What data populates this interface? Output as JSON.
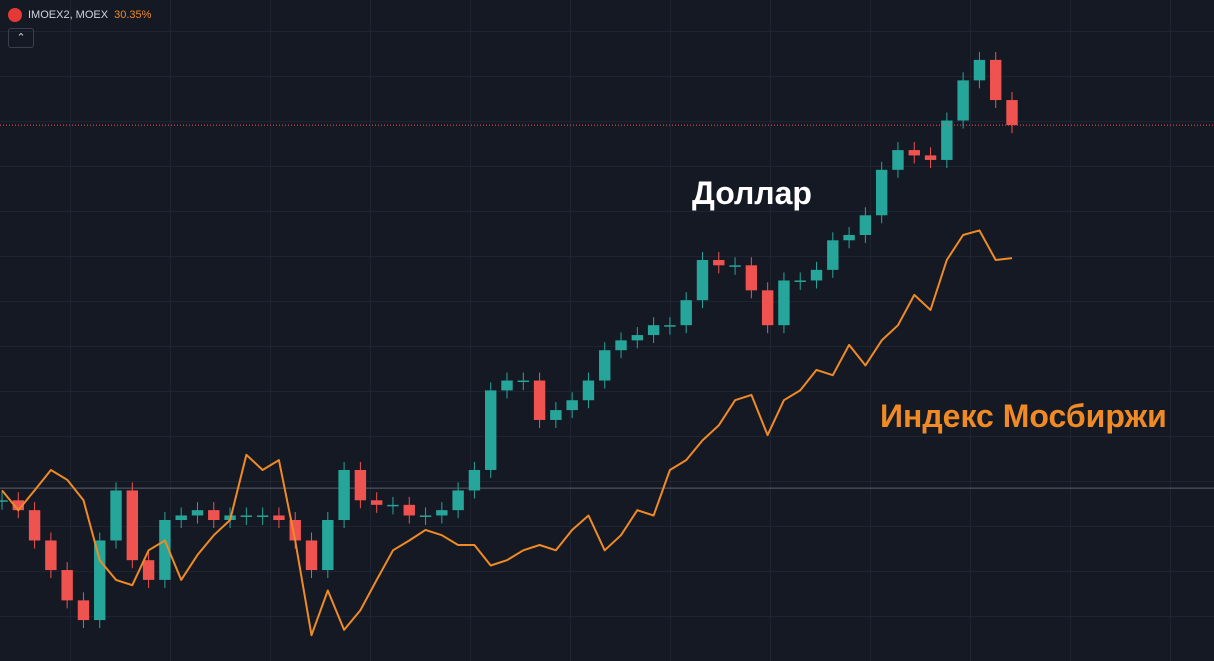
{
  "chart_data": {
    "type": "candle-line",
    "header": {
      "symbol": "IMOEX2, MOEX",
      "change": "30.35%"
    },
    "ylim": [
      -22.8,
      64.4
    ],
    "series": [
      {
        "name": "Доллар",
        "kind": "candle",
        "up_color": "#26a69a",
        "down_color": "#ef5350",
        "values": [
          -1.6,
          -2.9,
          -6.9,
          -10.8,
          -14.8,
          -17.4,
          -6.9,
          -0.3,
          -9.5,
          -12.1,
          -4.2,
          -3.6,
          -2.9,
          -4.2,
          -3.6,
          -3.6,
          -3.6,
          -4.2,
          -6.9,
          -10.8,
          -4.2,
          2.4,
          -1.6,
          -2.2,
          -2.2,
          -3.6,
          -3.6,
          -2.9,
          -0.3,
          2.4,
          12.9,
          14.2,
          14.2,
          9.0,
          10.3,
          11.6,
          14.2,
          18.2,
          19.5,
          20.2,
          21.5,
          21.5,
          24.8,
          30.1,
          29.4,
          29.4,
          26.1,
          21.5,
          27.4,
          27.4,
          28.8,
          32.7,
          33.4,
          36.0,
          42.0,
          44.6,
          43.9,
          43.3,
          48.5,
          53.8,
          56.5,
          51.2,
          47.9
        ]
      },
      {
        "name": "Индекс Мосбиржи",
        "kind": "line",
        "color": "#f08a24",
        "values": [
          -0.3,
          -2.9,
          -0.3,
          2.4,
          1.1,
          -1.6,
          -9.5,
          -12.1,
          -12.8,
          -8.2,
          -6.9,
          -12.1,
          -8.8,
          -6.2,
          -4.2,
          4.4,
          2.4,
          3.7,
          -6.9,
          -19.4,
          -13.5,
          -18.7,
          -16.1,
          -12.1,
          -8.2,
          -6.9,
          -5.5,
          -6.2,
          -7.5,
          -7.5,
          -10.2,
          -9.5,
          -8.2,
          -7.5,
          -8.2,
          -5.5,
          -3.6,
          -8.2,
          -6.2,
          -2.9,
          -3.6,
          2.4,
          3.7,
          6.3,
          8.3,
          11.6,
          12.3,
          7.0,
          11.6,
          12.9,
          15.6,
          14.9,
          18.9,
          16.2,
          19.5,
          21.5,
          25.5,
          23.5,
          30.1,
          33.4,
          34.0,
          30.1,
          30.35
        ]
      }
    ]
  }
}
